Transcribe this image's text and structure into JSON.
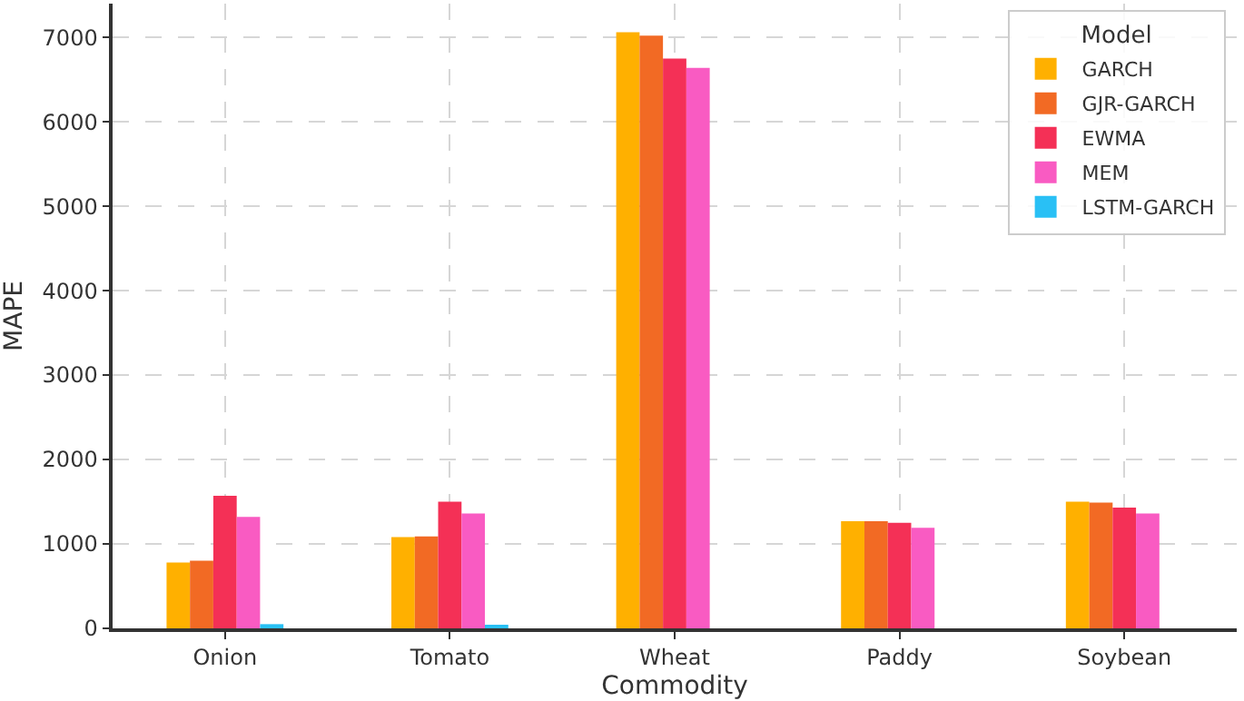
{
  "chart_data": {
    "type": "bar",
    "xlabel": "Commodity",
    "ylabel": "MAPE",
    "legend_title": "Model",
    "categories": [
      "Onion",
      "Tomato",
      "Wheat",
      "Paddy",
      "Soybean"
    ],
    "series": [
      {
        "name": "GARCH",
        "color": "#ffb000",
        "values": [
          780,
          1080,
          7060,
          1270,
          1500
        ]
      },
      {
        "name": "GJR-GARCH",
        "color": "#f26a24",
        "values": [
          800,
          1090,
          7020,
          1270,
          1490
        ]
      },
      {
        "name": "EWMA",
        "color": "#f43056",
        "values": [
          1570,
          1500,
          6750,
          1250,
          1430
        ]
      },
      {
        "name": "MEM",
        "color": "#f95bc2",
        "values": [
          1320,
          1360,
          6640,
          1190,
          1360
        ]
      },
      {
        "name": "LSTM-GARCH",
        "color": "#29c0f5",
        "values": [
          50,
          40,
          null,
          null,
          null
        ]
      }
    ],
    "ylim": [
      0,
      7400
    ],
    "yticks": [
      0,
      1000,
      2000,
      3000,
      4000,
      5000,
      6000,
      7000
    ],
    "grid": true,
    "legend": "top right"
  }
}
